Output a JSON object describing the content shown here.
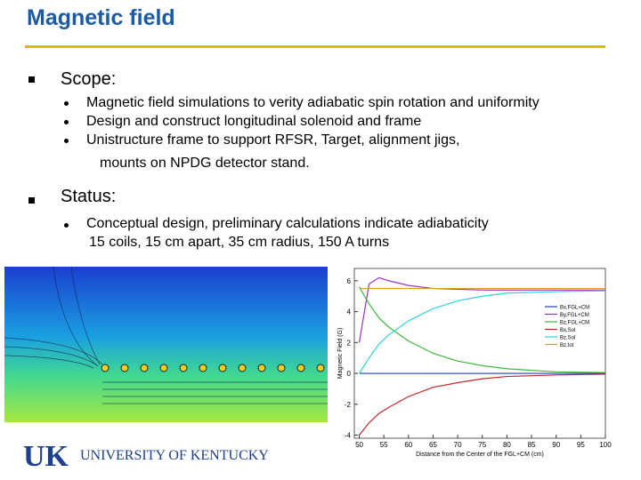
{
  "header": {
    "title": "Magnetic field"
  },
  "sections": [
    {
      "heading": "Scope:",
      "items": [
        "Magnetic field simulations to verity adiabatic spin rotation and uniformity",
        "Design and construct longitudinal solenoid and frame",
        "Unistructure frame to support RFSR, Target, alignment jigs,"
      ],
      "continuation": "mounts on NPDG detector stand."
    },
    {
      "heading": "Status:",
      "items": [
        "Conceptual design, preliminary calculations indicate adiabaticity"
      ],
      "continuation": "15 coils, 15 cm apart, 35 cm radius, 150 A turns"
    }
  ],
  "chart_data": {
    "type": "line",
    "x_label": "Distance from the Center of the FGL+CM (cm)",
    "y_label": "Magnetic Field (G)",
    "x": [
      50,
      52,
      54,
      56,
      60,
      65,
      70,
      75,
      80,
      90,
      100
    ],
    "xlim": [
      49,
      100
    ],
    "xticks": [
      50,
      55,
      60,
      65,
      70,
      75,
      80,
      85,
      90,
      95,
      100
    ],
    "ylim": [
      -4.2,
      6.8
    ],
    "yticks": [
      -4,
      -2,
      0,
      2,
      4,
      6
    ],
    "grid": false,
    "legend": "right",
    "series": [
      {
        "name": "Bx,FGL+CM",
        "color": "#1f3fbf",
        "values": [
          0,
          0,
          0,
          0,
          0,
          0,
          0,
          0,
          0,
          0,
          0
        ]
      },
      {
        "name": "By,FGL+CM",
        "color": "#9b30c8",
        "values": [
          2.0,
          5.8,
          6.2,
          6.0,
          5.7,
          5.5,
          5.45,
          5.4,
          5.4,
          5.4,
          5.4
        ]
      },
      {
        "name": "Bz,FGL+CM",
        "color": "#3cb83c",
        "values": [
          5.6,
          4.5,
          3.6,
          3.0,
          2.1,
          1.3,
          0.8,
          0.5,
          0.3,
          0.1,
          0.05
        ]
      },
      {
        "name": "Bx,Sol",
        "color": "#c02828",
        "values": [
          -4.0,
          -3.2,
          -2.6,
          -2.2,
          -1.5,
          -0.9,
          -0.6,
          -0.35,
          -0.2,
          -0.1,
          -0.05
        ]
      },
      {
        "name": "Bz,Sol",
        "color": "#30d0e0",
        "values": [
          0.0,
          1.0,
          1.9,
          2.5,
          3.4,
          4.2,
          4.7,
          5.0,
          5.2,
          5.3,
          5.35
        ]
      },
      {
        "name": "Bz,tot",
        "color": "#d9a020",
        "values": [
          5.5,
          5.5,
          5.5,
          5.5,
          5.5,
          5.5,
          5.5,
          5.5,
          5.5,
          5.5,
          5.5
        ]
      }
    ]
  },
  "logo": {
    "mark": "UK",
    "name": "UNIVERSITY OF KENTUCKY"
  }
}
